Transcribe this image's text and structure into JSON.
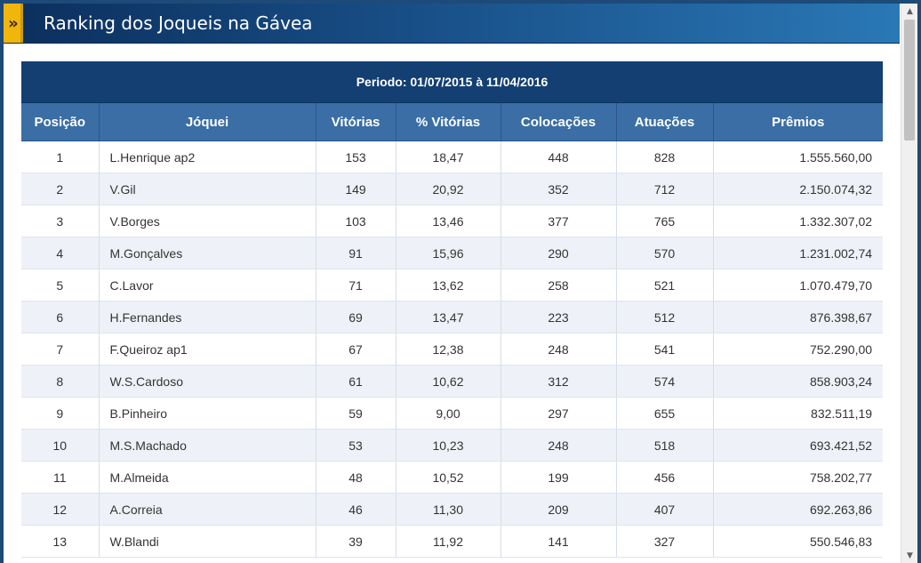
{
  "title": "Ranking dos Joqueis na Gávea",
  "table": {
    "period": "Periodo: 01/07/2015 à 11/04/2016",
    "headers": {
      "position": "Posição",
      "jockey": "Jóquei",
      "wins": "Vitórias",
      "pct_wins": "% Vitórias",
      "placings": "Colocações",
      "rides": "Atuações",
      "prizes": "Prêmios"
    },
    "rows": [
      {
        "position": "1",
        "jockey": "L.Henrique ap2",
        "wins": "153",
        "pct_wins": "18,47",
        "placings": "448",
        "rides": "828",
        "prizes": "1.555.560,00"
      },
      {
        "position": "2",
        "jockey": "V.Gil",
        "wins": "149",
        "pct_wins": "20,92",
        "placings": "352",
        "rides": "712",
        "prizes": "2.150.074,32"
      },
      {
        "position": "3",
        "jockey": "V.Borges",
        "wins": "103",
        "pct_wins": "13,46",
        "placings": "377",
        "rides": "765",
        "prizes": "1.332.307,02"
      },
      {
        "position": "4",
        "jockey": "M.Gonçalves",
        "wins": "91",
        "pct_wins": "15,96",
        "placings": "290",
        "rides": "570",
        "prizes": "1.231.002,74"
      },
      {
        "position": "5",
        "jockey": "C.Lavor",
        "wins": "71",
        "pct_wins": "13,62",
        "placings": "258",
        "rides": "521",
        "prizes": "1.070.479,70"
      },
      {
        "position": "6",
        "jockey": "H.Fernandes",
        "wins": "69",
        "pct_wins": "13,47",
        "placings": "223",
        "rides": "512",
        "prizes": "876.398,67"
      },
      {
        "position": "7",
        "jockey": "F.Queiroz ap1",
        "wins": "67",
        "pct_wins": "12,38",
        "placings": "248",
        "rides": "541",
        "prizes": "752.290,00"
      },
      {
        "position": "8",
        "jockey": "W.S.Cardoso",
        "wins": "61",
        "pct_wins": "10,62",
        "placings": "312",
        "rides": "574",
        "prizes": "858.903,24"
      },
      {
        "position": "9",
        "jockey": "B.Pinheiro",
        "wins": "59",
        "pct_wins": "9,00",
        "placings": "297",
        "rides": "655",
        "prizes": "832.511,19"
      },
      {
        "position": "10",
        "jockey": "M.S.Machado",
        "wins": "53",
        "pct_wins": "10,23",
        "placings": "248",
        "rides": "518",
        "prizes": "693.421,52"
      },
      {
        "position": "11",
        "jockey": "M.Almeida",
        "wins": "48",
        "pct_wins": "10,52",
        "placings": "199",
        "rides": "456",
        "prizes": "758.202,77"
      },
      {
        "position": "12",
        "jockey": "A.Correia",
        "wins": "46",
        "pct_wins": "11,30",
        "placings": "209",
        "rides": "407",
        "prizes": "692.263,86"
      },
      {
        "position": "13",
        "jockey": "W.Blandi",
        "wins": "39",
        "pct_wins": "11,92",
        "placings": "141",
        "rides": "327",
        "prizes": "550.546,83"
      }
    ]
  },
  "icons": {
    "title_arrow": "double-chevron-right-icon",
    "scroll_up": "scroll-up-arrow-icon",
    "scroll_down": "scroll-down-arrow-icon"
  },
  "colors": {
    "accent": "#f1b60b",
    "header_dark": "#133f72",
    "header": "#3a6ea5"
  }
}
